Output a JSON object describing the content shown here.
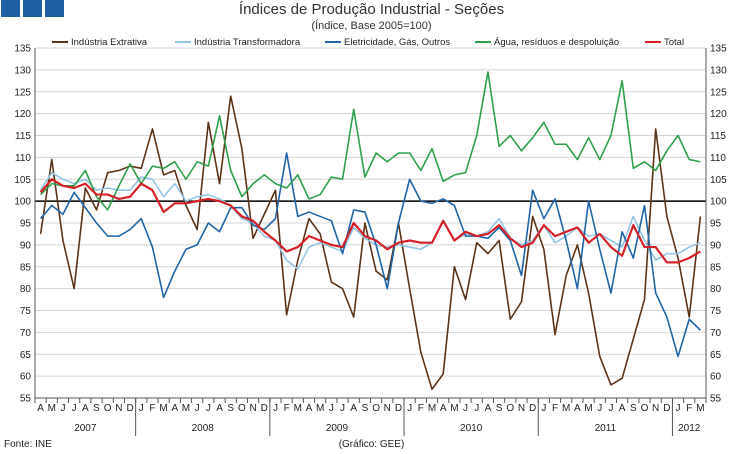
{
  "chart_data": {
    "type": "line",
    "title": "Índices de Produção Industrial - Seções",
    "subtitle": "(Índice, Base 2005=100)",
    "source": "Fonte: INE",
    "credit": "(Gráfico: GEE)",
    "ylim": [
      55,
      135
    ],
    "yticks": [
      55,
      60,
      65,
      70,
      75,
      80,
      85,
      90,
      95,
      100,
      105,
      110,
      115,
      120,
      125,
      130,
      135
    ],
    "reference_line": 100,
    "months": [
      "A",
      "M",
      "J",
      "J",
      "A",
      "S",
      "O",
      "N",
      "D",
      "J",
      "F",
      "M",
      "A",
      "M",
      "J",
      "J",
      "A",
      "S",
      "O",
      "N",
      "D",
      "J",
      "F",
      "M",
      "A",
      "M",
      "J",
      "J",
      "A",
      "S",
      "O",
      "N",
      "D",
      "J",
      "F",
      "M",
      "A",
      "M",
      "J",
      "J",
      "A",
      "S",
      "O",
      "N",
      "D",
      "J",
      "F",
      "M",
      "A",
      "M",
      "J",
      "J",
      "A",
      "S",
      "O",
      "N",
      "D",
      "J",
      "F",
      "M"
    ],
    "years": [
      {
        "label": "2007",
        "start": 0,
        "count": 9
      },
      {
        "label": "2008",
        "start": 9,
        "count": 12
      },
      {
        "label": "2009",
        "start": 21,
        "count": 12
      },
      {
        "label": "2010",
        "start": 33,
        "count": 12
      },
      {
        "label": "2011",
        "start": 45,
        "count": 12
      },
      {
        "label": "2012",
        "start": 57,
        "count": 3
      }
    ],
    "series": [
      {
        "name": "Indústria Extrativa",
        "color": "#5c3317",
        "values": [
          92.5,
          109.5,
          91,
          80,
          103,
          98,
          106.5,
          107,
          108,
          107.5,
          116.5,
          106,
          107,
          99,
          93.5,
          118,
          104,
          124,
          112,
          91.5,
          97,
          102.5,
          74,
          86.5,
          96,
          92.5,
          81.5,
          80,
          73.5,
          95,
          84,
          82,
          95,
          80,
          65.5,
          57,
          60.5,
          85,
          77.5,
          90.5,
          88,
          91,
          73,
          77,
          96.5,
          89,
          69.5,
          83,
          90,
          79,
          64.5,
          58,
          59.5,
          68.5,
          77.5,
          116.5,
          96.5,
          87,
          73.5,
          96.5
        ]
      },
      {
        "name": "Indústria Transformadora",
        "color": "#92c5e4",
        "values": [
          102.5,
          106.5,
          105,
          104,
          105,
          102.5,
          103,
          102.5,
          102.5,
          105.5,
          105,
          101,
          104,
          100,
          101,
          101.5,
          100.5,
          99,
          96,
          95,
          92,
          91,
          86.5,
          84.5,
          89.5,
          90.5,
          89.5,
          88.5,
          94,
          91.5,
          90,
          89.5,
          90,
          89.5,
          89,
          90.5,
          95.5,
          91,
          92.5,
          92,
          93,
          96,
          91.5,
          90,
          91,
          94.5,
          90.5,
          92,
          94,
          92,
          92.5,
          91,
          89.5,
          96.5,
          91,
          86.5,
          88,
          88,
          89.5,
          90.5
        ]
      },
      {
        "name": "Eletricidade, Gás, Outros",
        "color": "#1f65a8",
        "values": [
          96,
          99,
          97,
          102,
          98.5,
          95,
          92,
          92,
          93.5,
          96,
          89.5,
          78,
          84,
          89,
          90,
          95,
          93,
          98.5,
          98.5,
          94.5,
          93.5,
          96,
          111,
          96.5,
          97.5,
          96.5,
          95.5,
          88,
          98,
          97.5,
          90,
          80,
          95,
          105,
          100,
          99.5,
          100.5,
          99,
          92,
          92,
          91.5,
          94,
          91,
          83,
          102.5,
          96,
          100.5,
          91,
          80,
          100,
          89,
          79,
          93,
          87,
          99,
          79,
          73.5,
          64.5,
          73,
          70.5
        ]
      },
      {
        "name": "Água, resíduos e despoluição",
        "color": "#2ea04a",
        "values": [
          101.5,
          104,
          103.5,
          103.5,
          107,
          101,
          98,
          103.5,
          108.5,
          104,
          108,
          107.5,
          109,
          105,
          109,
          108,
          119.5,
          107,
          101,
          104,
          106,
          104,
          103,
          106,
          100.5,
          101.5,
          105.5,
          105,
          121,
          105.5,
          111,
          109,
          111,
          111,
          107,
          112,
          104.5,
          106,
          106.5,
          115,
          129.5,
          112.5,
          115,
          111.5,
          114.5,
          118,
          113,
          113,
          109.5,
          114.5,
          109.5,
          115,
          127.5,
          107.5,
          109,
          107,
          111.5,
          115,
          109.5,
          109
        ]
      },
      {
        "name": "Total",
        "color": "#d42127",
        "values": [
          102,
          105,
          103.5,
          103,
          104,
          101.5,
          101.5,
          100.5,
          101,
          104,
          102.5,
          97.5,
          99.5,
          99.5,
          100,
          100.5,
          100,
          99,
          96.5,
          95.5,
          93,
          91,
          88.5,
          89.5,
          92,
          91,
          90,
          89.5,
          95,
          92,
          91,
          89,
          90.5,
          91,
          90.5,
          90.5,
          95.5,
          91,
          93,
          92,
          92.5,
          94.5,
          91.5,
          89.5,
          90.5,
          94.5,
          92,
          93,
          94,
          90.5,
          92.5,
          89.5,
          87.5,
          94.5,
          89.5,
          89.5,
          86,
          86,
          87,
          88.5
        ]
      }
    ]
  }
}
